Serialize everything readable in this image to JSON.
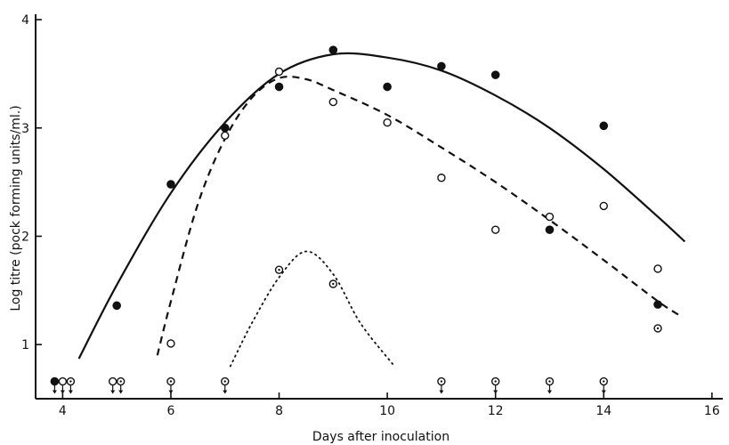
{
  "chart_data": {
    "type": "scatter",
    "xlabel": "Days after inoculation",
    "ylabel": "Log titre (pock forming units/ml.)",
    "xlim": [
      3.5,
      16.2
    ],
    "ylim": [
      0.5,
      4.05
    ],
    "xticks": [
      4,
      6,
      8,
      10,
      12,
      14,
      16
    ],
    "yticks": [
      1,
      2,
      3,
      4
    ],
    "grid": false,
    "legend": "none",
    "series": [
      {
        "marker": "filled-circle",
        "points": [
          {
            "x": 5,
            "y": 1.36
          },
          {
            "x": 6,
            "y": 2.48
          },
          {
            "x": 7,
            "y": 3.0
          },
          {
            "x": 8,
            "y": 3.38
          },
          {
            "x": 9,
            "y": 3.72
          },
          {
            "x": 10,
            "y": 3.38
          },
          {
            "x": 11,
            "y": 3.57
          },
          {
            "x": 12,
            "y": 3.49
          },
          {
            "x": 13,
            "y": 2.06
          },
          {
            "x": 14,
            "y": 3.02
          },
          {
            "x": 15,
            "y": 1.37
          }
        ],
        "below_detection_days": [
          4
        ],
        "curve_style": "solid",
        "curve": [
          {
            "x": 4.3,
            "y": 0.87
          },
          {
            "x": 5,
            "y": 1.55
          },
          {
            "x": 6,
            "y": 2.4
          },
          {
            "x": 7,
            "y": 3.05
          },
          {
            "x": 8,
            "y": 3.5
          },
          {
            "x": 9,
            "y": 3.68
          },
          {
            "x": 10,
            "y": 3.65
          },
          {
            "x": 11,
            "y": 3.53
          },
          {
            "x": 12,
            "y": 3.3
          },
          {
            "x": 13,
            "y": 3.0
          },
          {
            "x": 14,
            "y": 2.62
          },
          {
            "x": 15,
            "y": 2.18
          },
          {
            "x": 15.5,
            "y": 1.95
          }
        ]
      },
      {
        "marker": "open-circle",
        "points": [
          {
            "x": 6,
            "y": 1.01
          },
          {
            "x": 7,
            "y": 2.93
          },
          {
            "x": 8,
            "y": 3.52
          },
          {
            "x": 9,
            "y": 3.24
          },
          {
            "x": 10,
            "y": 3.05
          },
          {
            "x": 11,
            "y": 2.54
          },
          {
            "x": 12,
            "y": 2.06
          },
          {
            "x": 13,
            "y": 2.18
          },
          {
            "x": 14,
            "y": 2.28
          },
          {
            "x": 15,
            "y": 1.7
          }
        ],
        "below_detection_days": [
          4,
          5
        ],
        "curve_style": "dashed",
        "curve": [
          {
            "x": 5.75,
            "y": 0.9
          },
          {
            "x": 6,
            "y": 1.4
          },
          {
            "x": 6.5,
            "y": 2.3
          },
          {
            "x": 7,
            "y": 2.9
          },
          {
            "x": 7.5,
            "y": 3.28
          },
          {
            "x": 8,
            "y": 3.46
          },
          {
            "x": 8.5,
            "y": 3.45
          },
          {
            "x": 9,
            "y": 3.35
          },
          {
            "x": 10,
            "y": 3.12
          },
          {
            "x": 11,
            "y": 2.82
          },
          {
            "x": 12,
            "y": 2.5
          },
          {
            "x": 13,
            "y": 2.15
          },
          {
            "x": 14,
            "y": 1.78
          },
          {
            "x": 15,
            "y": 1.4
          },
          {
            "x": 15.4,
            "y": 1.27
          }
        ]
      },
      {
        "marker": "dotted-circle",
        "points": [
          {
            "x": 8,
            "y": 1.69
          },
          {
            "x": 9,
            "y": 1.56
          },
          {
            "x": 15,
            "y": 1.15
          }
        ],
        "below_detection_days": [
          4,
          5,
          6,
          7,
          11,
          12,
          13,
          14
        ],
        "curve_style": "dotted",
        "curve": [
          {
            "x": 7.1,
            "y": 0.8
          },
          {
            "x": 7.5,
            "y": 1.2
          },
          {
            "x": 8,
            "y": 1.62
          },
          {
            "x": 8.5,
            "y": 1.86
          },
          {
            "x": 9,
            "y": 1.65
          },
          {
            "x": 9.5,
            "y": 1.2
          },
          {
            "x": 10.1,
            "y": 0.82
          }
        ]
      }
    ],
    "below_detection_level": 0.66
  }
}
